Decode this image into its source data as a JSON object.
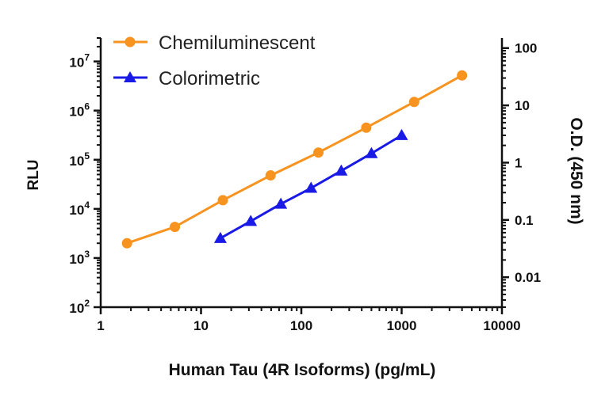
{
  "chart_data": {
    "type": "line",
    "xlabel": "Human Tau (4R Isoforms) (pg/mL)",
    "ylabel": "RLU",
    "y2label": "O.D. (450 nm)",
    "xscale": "log",
    "yscale": "log",
    "y2scale": "log",
    "xlim": [
      1,
      10000
    ],
    "ylim": [
      100,
      30000000
    ],
    "y2lim": [
      0.003,
      150
    ],
    "x_ticks": [
      "1",
      "10",
      "100",
      "1000",
      "10000"
    ],
    "y_ticks": [
      {
        "base": "10",
        "exp": "2"
      },
      {
        "base": "10",
        "exp": "3"
      },
      {
        "base": "10",
        "exp": "4"
      },
      {
        "base": "10",
        "exp": "5"
      },
      {
        "base": "10",
        "exp": "6"
      },
      {
        "base": "10",
        "exp": "7"
      }
    ],
    "y2_ticks": [
      "0.01",
      "0.1",
      "1",
      "10",
      "100"
    ],
    "legend_position": "top-left",
    "series": [
      {
        "name": "Chemiluminescent",
        "axis": "left",
        "marker": "circle",
        "color": "#F7931E",
        "x": [
          1.83,
          5.49,
          16.5,
          49.4,
          148,
          444,
          1333,
          4000
        ],
        "y": [
          2000,
          4300,
          15000,
          48000,
          140000,
          450000,
          1500000,
          5200000
        ]
      },
      {
        "name": "Colorimetric",
        "axis": "right",
        "marker": "triangle",
        "color": "#1A1AE6",
        "x": [
          15.6,
          31.3,
          62.5,
          125,
          250,
          500,
          1000
        ],
        "y": [
          0.048,
          0.095,
          0.19,
          0.36,
          0.72,
          1.45,
          3.0
        ]
      }
    ]
  }
}
